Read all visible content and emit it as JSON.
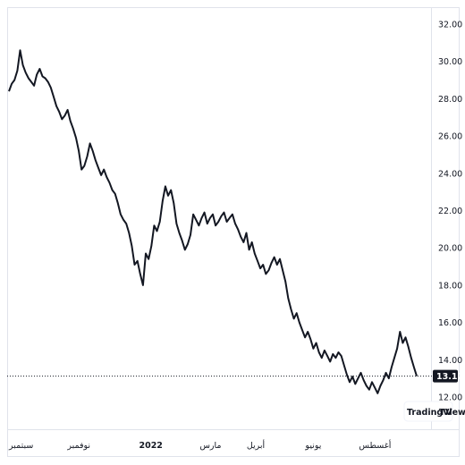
{
  "chart_data": {
    "type": "line",
    "title": "",
    "xlabel": "",
    "ylabel": "",
    "ylim": [
      11.5,
      32.0
    ],
    "y_ticks": [
      "32.00",
      "30.00",
      "28.00",
      "26.00",
      "24.00",
      "22.00",
      "20.00",
      "18.00",
      "16.00",
      "14.00",
      "12.00"
    ],
    "x_ticks": [
      {
        "label": "سبتمبر",
        "pos": 0.0,
        "bold": false
      },
      {
        "label": "نوفمبر",
        "pos": 0.17,
        "bold": false
      },
      {
        "label": "2022",
        "pos": 0.345,
        "bold": true
      },
      {
        "label": "مارس",
        "pos": 0.49,
        "bold": false
      },
      {
        "label": "أبريل",
        "pos": 0.6,
        "bold": false
      },
      {
        "label": "يونيو",
        "pos": 0.74,
        "bold": false
      },
      {
        "label": "أغسطس",
        "pos": 0.89,
        "bold": false
      }
    ],
    "last_price": "13.12",
    "last_value": 13.12,
    "series": [
      {
        "values": [
          28.4,
          28.8,
          29.0,
          29.5,
          30.6,
          29.8,
          29.4,
          29.1,
          28.9,
          28.7,
          29.3,
          29.6,
          29.2,
          29.1,
          28.9,
          28.6,
          28.1,
          27.6,
          27.3,
          26.9,
          27.1,
          27.4,
          26.8,
          26.4,
          25.9,
          25.2,
          24.2,
          24.4,
          24.9,
          25.6,
          25.2,
          24.7,
          24.3,
          23.9,
          24.2,
          23.8,
          23.5,
          23.1,
          22.9,
          22.4,
          21.8,
          21.5,
          21.3,
          20.8,
          20.1,
          19.1,
          19.3,
          18.6,
          18.0,
          19.7,
          19.4,
          20.1,
          21.2,
          20.9,
          21.4,
          22.5,
          23.3,
          22.8,
          23.1,
          22.4,
          21.3,
          20.8,
          20.4,
          19.9,
          20.2,
          20.7,
          21.8,
          21.5,
          21.2,
          21.6,
          21.9,
          21.3,
          21.6,
          21.8,
          21.2,
          21.4,
          21.7,
          21.9,
          21.4,
          21.6,
          21.8,
          21.3,
          21.0,
          20.6,
          20.3,
          20.8,
          19.9,
          20.3,
          19.7,
          19.3,
          18.9,
          19.1,
          18.6,
          18.8,
          19.2,
          19.5,
          19.1,
          19.4,
          18.8,
          18.2,
          17.3,
          16.7,
          16.2,
          16.5,
          16.0,
          15.6,
          15.2,
          15.5,
          15.1,
          14.6,
          14.9,
          14.4,
          14.1,
          14.5,
          14.2,
          13.9,
          14.3,
          14.1,
          14.4,
          14.2,
          13.7,
          13.2,
          12.8,
          13.1,
          12.7,
          13.0,
          13.3,
          12.9,
          12.6,
          12.4,
          12.8,
          12.5,
          12.2,
          12.6,
          12.9,
          13.3,
          13.0,
          13.6,
          14.1,
          14.6,
          15.5,
          14.9,
          15.2,
          14.7,
          14.1,
          13.6,
          13.12
        ]
      }
    ]
  },
  "branding": {
    "logo_text": "TradingView",
    "logo_glyph": "TV"
  },
  "colors": {
    "line": "#131722",
    "price_badge": "#131722",
    "grid": "#e9ebef"
  }
}
